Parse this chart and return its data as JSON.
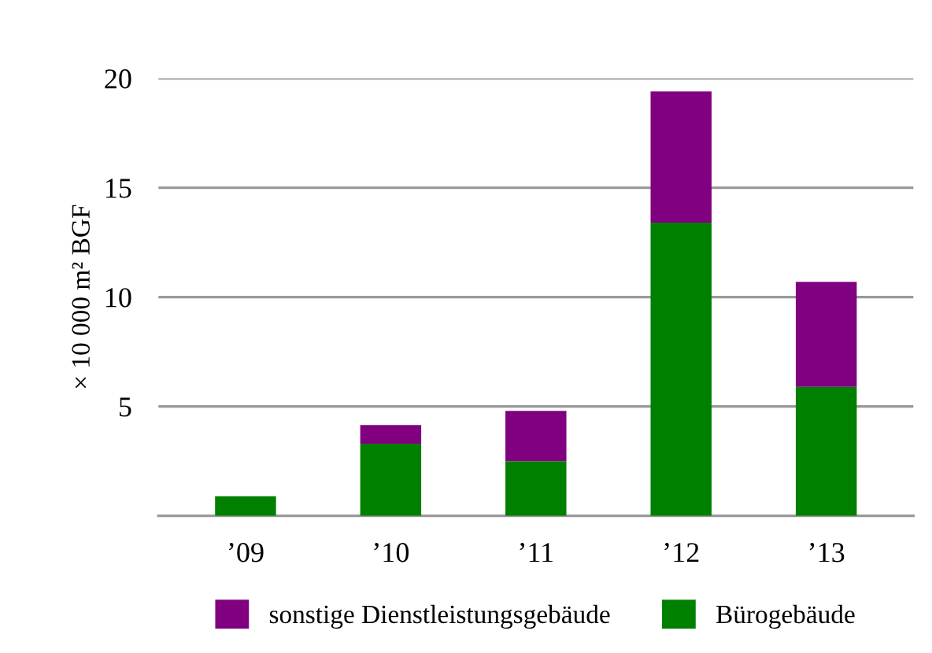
{
  "chart_data": {
    "type": "bar",
    "stacked": true,
    "categories": [
      "’09",
      "’10",
      "’11",
      "’12",
      "’13"
    ],
    "series": [
      {
        "name": "Bürogebäude",
        "color": "#008000",
        "values": [
          0.9,
          3.3,
          2.5,
          13.4,
          5.9
        ]
      },
      {
        "name": "sonstige Dienstleistungsgebäude",
        "color": "#800080",
        "values": [
          0,
          0.85,
          2.3,
          6.0,
          4.8
        ]
      }
    ],
    "ylabel": "× 10 000 m² BGF",
    "ylim": [
      0,
      20
    ],
    "yticks": [
      {
        "value": 0,
        "label": null
      },
      5,
      10,
      15,
      20
    ],
    "grid": "y",
    "legend": "bottom"
  }
}
